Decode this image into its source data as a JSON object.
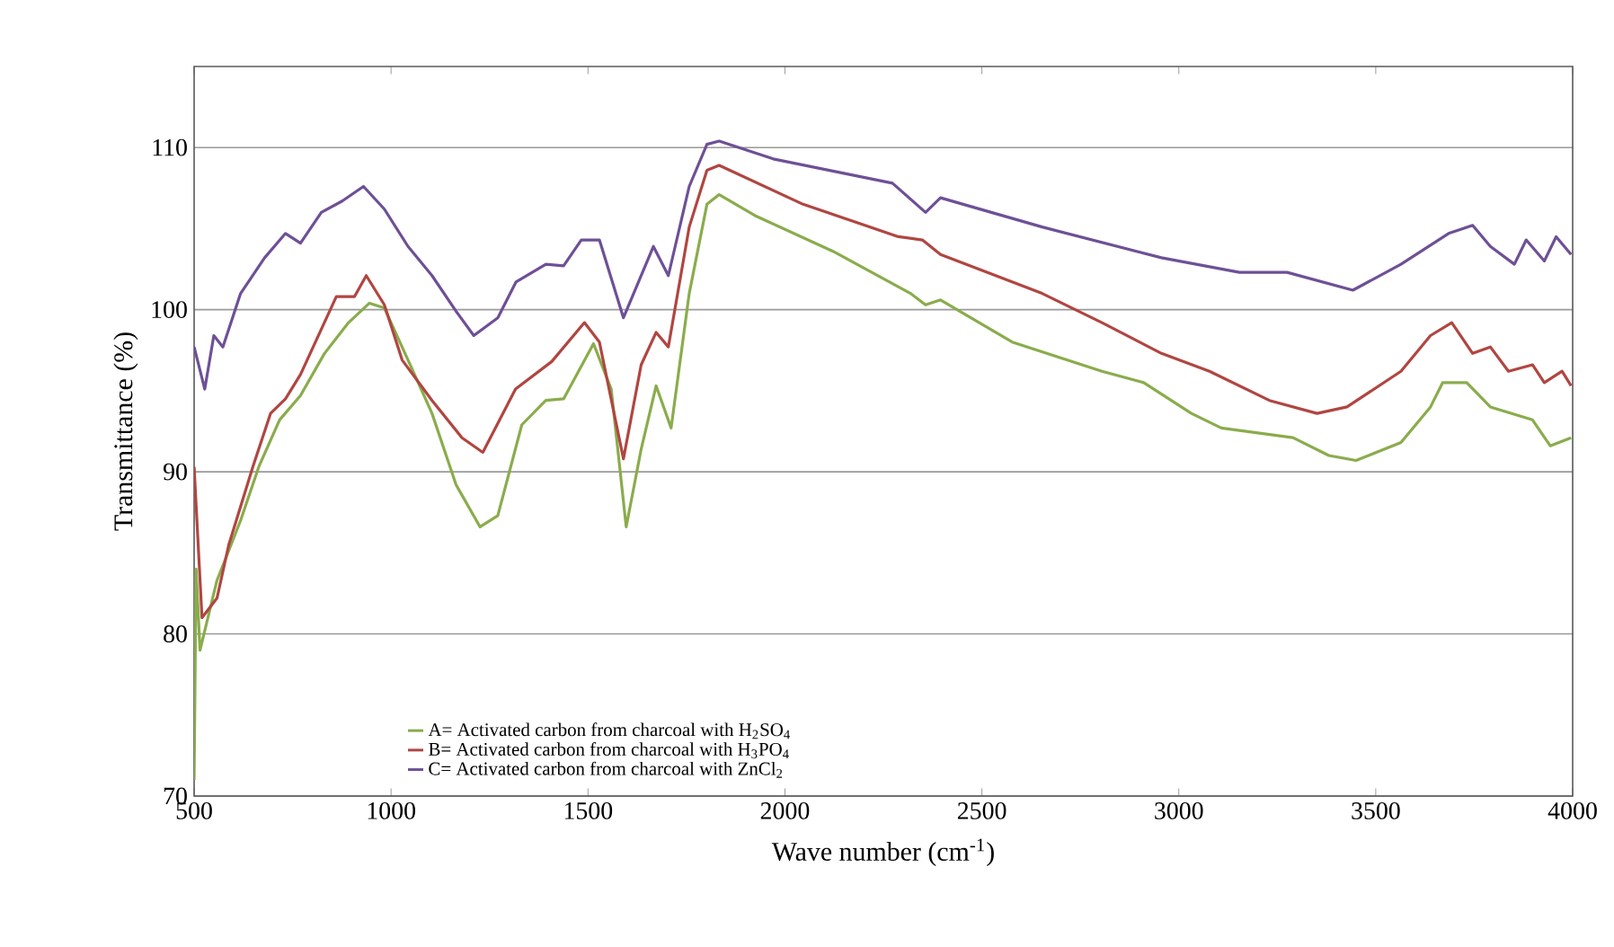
{
  "chart_data": {
    "type": "line",
    "xlabel": "Wave number (cm$^{-1}$)",
    "ylabel": "Transmittance (%)",
    "xlim": [
      500,
      4000
    ],
    "xticks": [
      500,
      1000,
      1500,
      2000,
      2500,
      3000,
      3500,
      4000
    ],
    "ylim": [
      70,
      115
    ],
    "yticks": [
      70,
      80,
      90,
      100,
      110
    ],
    "grid": "y",
    "legend": "bottom left",
    "marker": "none",
    "series": [
      {
        "name": "A= Activated carbon from charcoal with H$_{2}$SO$_{4}$",
        "color": "#8aac4c",
        "x": [
          500,
          505,
          515,
          558,
          618,
          664,
          717,
          770,
          831,
          892,
          945,
          983,
          1043,
          1104,
          1165,
          1226,
          1271,
          1332,
          1393,
          1438,
          1514,
          1559,
          1597,
          1635,
          1673,
          1711,
          1757,
          1802,
          1833,
          1924,
          2122,
          2319,
          2357,
          2395,
          2577,
          2805,
          2911,
          3032,
          3108,
          3290,
          3381,
          3450,
          3564,
          3639,
          3670,
          3731,
          3791,
          3898,
          3943,
          3996
        ],
        "values": [
          71,
          84,
          79,
          83.3,
          87,
          90.3,
          93.2,
          94.7,
          97.3,
          99.2,
          100.4,
          100.1,
          96.9,
          93.6,
          89.2,
          86.6,
          87.3,
          92.9,
          94.4,
          94.5,
          97.9,
          95.1,
          86.6,
          91.4,
          95.3,
          92.7,
          101,
          106.5,
          107.1,
          105.8,
          103.6,
          101,
          100.3,
          100.6,
          98,
          96.2,
          95.5,
          93.6,
          92.7,
          92.1,
          91,
          90.7,
          91.8,
          94,
          95.5,
          95.5,
          94,
          93.2,
          91.6,
          92.1
        ]
      },
      {
        "name": "B= Activated carbon from charcoal with H$_{3}$PO$_{4}$",
        "color": "#b04641",
        "x": [
          500,
          520,
          558,
          588,
          649,
          694,
          732,
          770,
          861,
          907,
          937,
          983,
          1028,
          1104,
          1180,
          1233,
          1316,
          1408,
          1491,
          1529,
          1590,
          1635,
          1673,
          1704,
          1757,
          1802,
          1833,
          2046,
          2288,
          2349,
          2395,
          2653,
          2805,
          2956,
          3078,
          3230,
          3351,
          3427,
          3564,
          3639,
          3693,
          3746,
          3791,
          3837,
          3898,
          3928,
          3973,
          3996
        ],
        "values": [
          90.3,
          81,
          82.2,
          85.5,
          90.3,
          93.6,
          94.5,
          96,
          100.8,
          100.8,
          102.1,
          100.3,
          96.9,
          94.4,
          92.1,
          91.2,
          95.1,
          96.8,
          99.2,
          98,
          90.8,
          96.6,
          98.6,
          97.7,
          105.1,
          108.6,
          108.9,
          106.5,
          104.5,
          104.3,
          103.4,
          101,
          99.2,
          97.3,
          96.2,
          94.4,
          93.6,
          94,
          96.2,
          98.4,
          99.2,
          97.3,
          97.7,
          96.2,
          96.6,
          95.5,
          96.2,
          95.3
        ]
      },
      {
        "name": "C= Activated carbon from charcoal with ZnCl$_{2}$",
        "color": "#6e5096",
        "x": [
          500,
          527,
          550,
          573,
          618,
          679,
          732,
          770,
          823,
          876,
          930,
          983,
          1043,
          1104,
          1165,
          1210,
          1271,
          1317,
          1393,
          1438,
          1483,
          1529,
          1590,
          1666,
          1704,
          1757,
          1802,
          1833,
          1970,
          2273,
          2357,
          2395,
          2653,
          2956,
          3154,
          3275,
          3442,
          3564,
          3685,
          3746,
          3791,
          3852,
          3882,
          3928,
          3958,
          3996
        ],
        "values": [
          97.7,
          95.1,
          98.4,
          97.7,
          101,
          103.2,
          104.7,
          104.1,
          106,
          106.7,
          107.6,
          106.2,
          103.9,
          102.1,
          99.9,
          98.4,
          99.5,
          101.7,
          102.8,
          102.7,
          104.3,
          104.3,
          99.5,
          103.9,
          102.1,
          107.6,
          110.2,
          110.4,
          109.3,
          107.8,
          106,
          106.9,
          105.1,
          103.2,
          102.3,
          102.3,
          101.2,
          102.8,
          104.7,
          105.2,
          103.9,
          102.8,
          104.3,
          103,
          104.5,
          103.4
        ]
      }
    ]
  }
}
